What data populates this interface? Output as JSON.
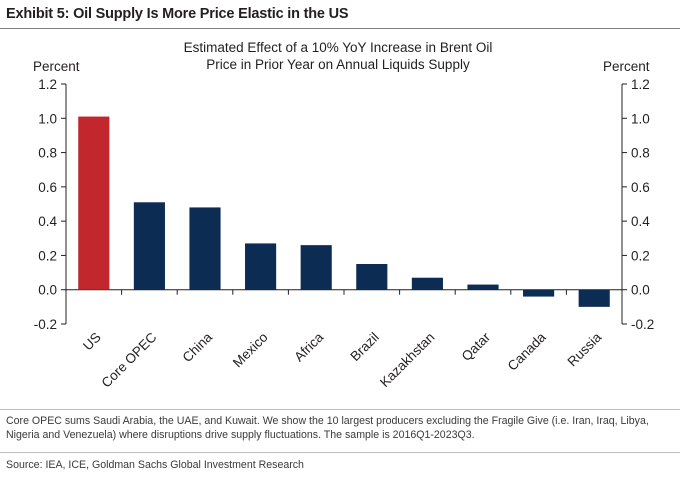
{
  "exhibit_title": "Exhibit 5: Oil Supply Is More Price Elastic in the US",
  "footnote": "Core OPEC sums Saudi Arabia, the UAE, and Kuwait. We show the 10 largest producers excluding the Fragile Give (i.e. Iran, Iraq, Libya, Nigeria and Venezuela) where disruptions drive supply fluctuations. The sample is 2016Q1-2023Q3.",
  "source": "Source: IEA, ICE, Goldman Sachs Global Investment Research",
  "colors": {
    "highlight": "#c1272d",
    "bar": "#0d2c54",
    "axis": "#231f20"
  },
  "chart_data": {
    "type": "bar",
    "title": "Estimated Effect of a 10% YoY Increase in Brent Oil Price in Prior Year on Annual Liquids Supply",
    "title_lines": [
      "Estimated Effect of a 10% YoY Increase in Brent Oil",
      "Price in Prior Year on Annual Liquids Supply"
    ],
    "ylabel_left": "Percent",
    "ylabel_right": "Percent",
    "categories": [
      "US",
      "Core OPEC",
      "China",
      "Mexico",
      "Africa",
      "Brazil",
      "Kazakhstan",
      "Qatar",
      "Canada",
      "Russia"
    ],
    "values": [
      1.01,
      0.51,
      0.48,
      0.27,
      0.26,
      0.15,
      0.07,
      0.03,
      -0.04,
      -0.1
    ],
    "highlight_category": "US",
    "ylim": [
      -0.2,
      1.2
    ],
    "yticks": [
      "-0.2",
      "0.0",
      "0.2",
      "0.4",
      "0.6",
      "0.8",
      "1.0",
      "1.2"
    ],
    "grid": false,
    "legend": "none"
  }
}
